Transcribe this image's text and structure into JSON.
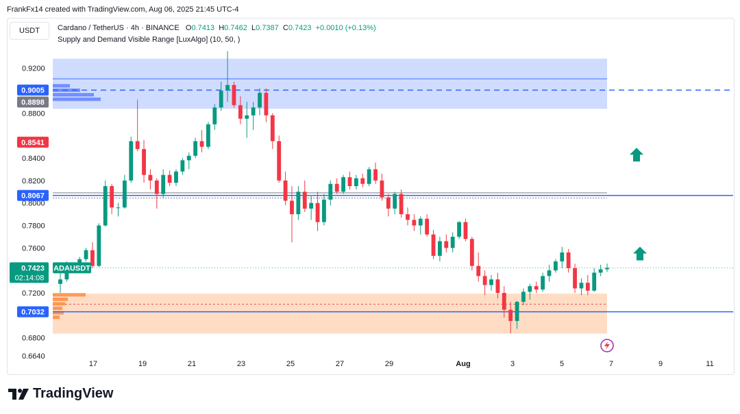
{
  "credit": "FrankFx14 created with TradingView.com, Aug 06, 2025 21:45 UTC-4",
  "currency_button": "USDT",
  "legend": {
    "symbol": "Cardano / TetherUS · 4h · BINANCE",
    "o_label": "O",
    "o": "0.7413",
    "h_label": "H",
    "h": "0.7462",
    "l_label": "L",
    "l": "0.7387",
    "c_label": "C",
    "c": "0.7423",
    "change": "+0.0010 (+0.13%)"
  },
  "indicator": "Supply and Demand Visible Range [LuxAlgo] (10, 50, )",
  "logo_text": "TradingView",
  "colors": {
    "up": "#089981",
    "down": "#f23645",
    "supply": "#b7c9ff",
    "demand": "#ffd1b0",
    "line": "#2962ff"
  },
  "chart_data": {
    "type": "candlestick",
    "symbol": "ADAUSDT",
    "timeframe": "4h",
    "ylim": [
      0.664,
      0.938
    ],
    "y_ticks": [
      "0.9200",
      "0.8800",
      "0.8400",
      "0.8200",
      "0.8000",
      "0.7800",
      "0.7600",
      "0.7200",
      "0.6800",
      "0.6640"
    ],
    "y_tick_values": [
      0.92,
      0.88,
      0.84,
      0.82,
      0.8,
      0.78,
      0.76,
      0.72,
      0.68,
      0.664
    ],
    "x_ticks": [
      "17",
      "19",
      "21",
      "23",
      "25",
      "27",
      "29",
      "Aug",
      "3",
      "5",
      "7",
      "9",
      "11"
    ],
    "price_labels": [
      {
        "text": "0.9005",
        "value": 0.9005,
        "color": "#2962ff"
      },
      {
        "text": "0.8898",
        "value": 0.8898,
        "color": "#787b86"
      },
      {
        "text": "0.8541",
        "value": 0.8541,
        "color": "#f23645"
      },
      {
        "text": "0.8067",
        "value": 0.8067,
        "color": "#2962ff"
      },
      {
        "text": "0.7032",
        "value": 0.7032,
        "color": "#2962ff"
      }
    ],
    "current_price": {
      "text": "0.7423",
      "value": 0.7423,
      "countdown": "02:14:08",
      "symbol_label": "ADAUSDT"
    },
    "supply_zone": [
      0.8838,
      0.9284
    ],
    "demand_zone": [
      0.6838,
      0.7194
    ],
    "horizontal_lines": [
      0.9005,
      0.8067,
      0.7032
    ],
    "arrows_up": [
      0.843,
      0.755
    ],
    "candles_ohlc": [
      [
        0.728,
        0.742,
        0.72,
        0.732
      ],
      [
        0.732,
        0.748,
        0.73,
        0.745
      ],
      [
        0.745,
        0.747,
        0.738,
        0.74
      ],
      [
        0.74,
        0.752,
        0.738,
        0.75
      ],
      [
        0.75,
        0.76,
        0.748,
        0.758
      ],
      [
        0.758,
        0.765,
        0.742,
        0.744
      ],
      [
        0.744,
        0.782,
        0.743,
        0.78
      ],
      [
        0.78,
        0.82,
        0.779,
        0.815
      ],
      [
        0.815,
        0.817,
        0.79,
        0.796
      ],
      [
        0.796,
        0.8,
        0.788,
        0.796
      ],
      [
        0.796,
        0.825,
        0.795,
        0.82
      ],
      [
        0.82,
        0.859,
        0.818,
        0.855
      ],
      [
        0.855,
        0.892,
        0.846,
        0.848
      ],
      [
        0.848,
        0.856,
        0.818,
        0.825
      ],
      [
        0.825,
        0.83,
        0.812,
        0.82
      ],
      [
        0.82,
        0.822,
        0.795,
        0.808
      ],
      [
        0.808,
        0.83,
        0.805,
        0.825
      ],
      [
        0.825,
        0.829,
        0.815,
        0.818
      ],
      [
        0.818,
        0.83,
        0.815,
        0.828
      ],
      [
        0.828,
        0.84,
        0.825,
        0.838
      ],
      [
        0.838,
        0.845,
        0.83,
        0.842
      ],
      [
        0.842,
        0.858,
        0.84,
        0.855
      ],
      [
        0.855,
        0.865,
        0.845,
        0.85
      ],
      [
        0.85,
        0.872,
        0.848,
        0.87
      ],
      [
        0.87,
        0.888,
        0.865,
        0.885
      ],
      [
        0.885,
        0.908,
        0.882,
        0.9
      ],
      [
        0.9,
        0.935,
        0.89,
        0.905
      ],
      [
        0.905,
        0.908,
        0.885,
        0.887
      ],
      [
        0.887,
        0.895,
        0.87,
        0.875
      ],
      [
        0.875,
        0.89,
        0.858,
        0.878
      ],
      [
        0.878,
        0.89,
        0.865,
        0.885
      ],
      [
        0.885,
        0.902,
        0.878,
        0.898
      ],
      [
        0.898,
        0.902,
        0.872,
        0.878
      ],
      [
        0.878,
        0.88,
        0.848,
        0.855
      ],
      [
        0.855,
        0.86,
        0.818,
        0.82
      ],
      [
        0.82,
        0.828,
        0.798,
        0.802
      ],
      [
        0.802,
        0.815,
        0.765,
        0.79
      ],
      [
        0.79,
        0.815,
        0.785,
        0.81
      ],
      [
        0.81,
        0.82,
        0.792,
        0.795
      ],
      [
        0.795,
        0.806,
        0.785,
        0.8
      ],
      [
        0.8,
        0.81,
        0.775,
        0.783
      ],
      [
        0.783,
        0.808,
        0.78,
        0.803
      ],
      [
        0.803,
        0.82,
        0.798,
        0.817
      ],
      [
        0.817,
        0.822,
        0.808,
        0.81
      ],
      [
        0.81,
        0.825,
        0.808,
        0.823
      ],
      [
        0.823,
        0.828,
        0.812,
        0.815
      ],
      [
        0.815,
        0.825,
        0.812,
        0.822
      ],
      [
        0.822,
        0.826,
        0.814,
        0.817
      ],
      [
        0.817,
        0.832,
        0.815,
        0.83
      ],
      [
        0.83,
        0.836,
        0.817,
        0.82
      ],
      [
        0.82,
        0.826,
        0.802,
        0.805
      ],
      [
        0.805,
        0.808,
        0.788,
        0.795
      ],
      [
        0.795,
        0.81,
        0.79,
        0.808
      ],
      [
        0.808,
        0.812,
        0.787,
        0.79
      ],
      [
        0.79,
        0.796,
        0.78,
        0.785
      ],
      [
        0.785,
        0.79,
        0.775,
        0.78
      ],
      [
        0.78,
        0.788,
        0.772,
        0.786
      ],
      [
        0.786,
        0.79,
        0.77,
        0.772
      ],
      [
        0.772,
        0.776,
        0.75,
        0.753
      ],
      [
        0.753,
        0.77,
        0.748,
        0.766
      ],
      [
        0.766,
        0.772,
        0.756,
        0.76
      ],
      [
        0.76,
        0.774,
        0.756,
        0.77
      ],
      [
        0.77,
        0.784,
        0.768,
        0.783
      ],
      [
        0.783,
        0.786,
        0.766,
        0.768
      ],
      [
        0.768,
        0.77,
        0.74,
        0.744
      ],
      [
        0.744,
        0.756,
        0.73,
        0.735
      ],
      [
        0.735,
        0.74,
        0.718,
        0.727
      ],
      [
        0.727,
        0.736,
        0.722,
        0.732
      ],
      [
        0.732,
        0.738,
        0.715,
        0.72
      ],
      [
        0.72,
        0.726,
        0.698,
        0.705
      ],
      [
        0.705,
        0.712,
        0.684,
        0.695
      ],
      [
        0.695,
        0.713,
        0.688,
        0.712
      ],
      [
        0.712,
        0.724,
        0.709,
        0.721
      ],
      [
        0.721,
        0.728,
        0.714,
        0.726
      ],
      [
        0.726,
        0.73,
        0.72,
        0.723
      ],
      [
        0.723,
        0.738,
        0.721,
        0.735
      ],
      [
        0.735,
        0.745,
        0.73,
        0.74
      ],
      [
        0.74,
        0.75,
        0.738,
        0.748
      ],
      [
        0.748,
        0.761,
        0.742,
        0.756
      ],
      [
        0.756,
        0.759,
        0.738,
        0.742
      ],
      [
        0.742,
        0.746,
        0.72,
        0.724
      ],
      [
        0.724,
        0.733,
        0.718,
        0.729
      ],
      [
        0.729,
        0.736,
        0.718,
        0.722
      ],
      [
        0.722,
        0.742,
        0.721,
        0.738
      ],
      [
        0.738,
        0.745,
        0.735,
        0.741
      ],
      [
        0.741,
        0.7462,
        0.7387,
        0.7423
      ]
    ]
  }
}
